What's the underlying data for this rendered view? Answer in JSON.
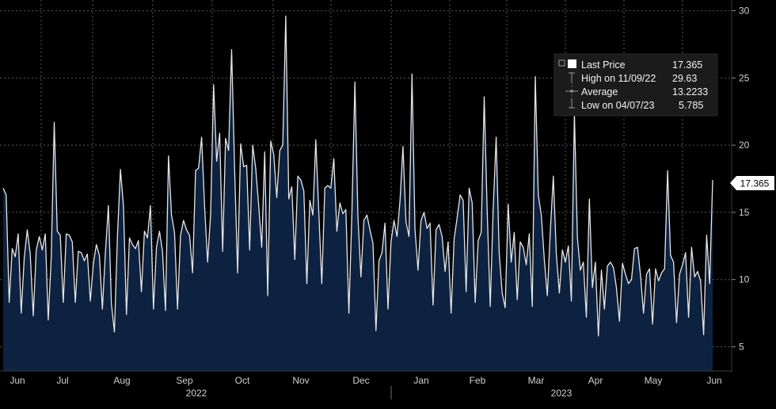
{
  "chart_data": {
    "type": "area",
    "last_price_label": "17.365",
    "x_month_labels": [
      "Jun",
      "Jul",
      "Aug",
      "Sep",
      "Oct",
      "Nov",
      "Dec",
      "Jan",
      "Feb",
      "Mar",
      "Apr",
      "May",
      "Jun"
    ],
    "year_labels": [
      "2022",
      "2023"
    ],
    "y_ticks": [
      5,
      10,
      15,
      20,
      25,
      30
    ],
    "ylim": [
      3.2,
      30.8
    ],
    "legend": [
      {
        "name": "Last Price",
        "value": "17.365"
      },
      {
        "name": "High on 11/09/22",
        "value": "29.63"
      },
      {
        "name": "Average",
        "value": "13.2233"
      },
      {
        "name": "Low on 04/07/23",
        "value": "5.785"
      }
    ],
    "series": [
      {
        "name": "Last Price",
        "values": [
          16.8,
          16.3,
          8.3,
          12.3,
          11.7,
          13.4,
          7.5,
          11.6,
          13.7,
          11.9,
          7.3,
          12.2,
          13.2,
          12.2,
          13.4,
          7.0,
          11.6,
          21.7,
          13.6,
          13.3,
          8.3,
          13.4,
          13.3,
          12.8,
          8.3,
          12.1,
          12.0,
          11.4,
          11.9,
          8.4,
          11.2,
          12.6,
          11.8,
          7.8,
          12.0,
          15.5,
          8.2,
          6.1,
          13.2,
          18.2,
          15.5,
          7.4,
          13.1,
          12.6,
          12.3,
          12.9,
          9.1,
          13.6,
          13.1,
          15.5,
          7.8,
          12.4,
          13.6,
          12.1,
          7.7,
          19.2,
          14.8,
          13.5,
          7.8,
          13.3,
          14.4,
          13.7,
          13.3,
          10.5,
          18.1,
          18.3,
          20.6,
          15.4,
          11.3,
          14.9,
          24.5,
          18.8,
          20.9,
          12.1,
          20.5,
          19.6,
          27.1,
          18.2,
          10.5,
          20.1,
          18.4,
          18.5,
          12.2,
          20.0,
          18.3,
          15.5,
          12.4,
          19.5,
          8.8,
          20.3,
          19.3,
          16.1,
          19.6,
          20.0,
          29.6,
          16.0,
          16.9,
          11.5,
          17.7,
          17.4,
          16.6,
          9.7,
          15.9,
          14.8,
          20.4,
          15.0,
          9.7,
          16.8,
          17.0,
          16.8,
          19.0,
          13.6,
          15.7,
          14.9,
          15.2,
          7.5,
          14.9,
          24.7,
          14.7,
          10.2,
          14.4,
          14.8,
          13.7,
          12.7,
          6.2,
          11.4,
          12.0,
          14.2,
          7.8,
          12.8,
          14.4,
          13.2,
          15.9,
          19.9,
          14.3,
          13.2,
          25.3,
          13.7,
          10.7,
          14.4,
          15.0,
          13.8,
          14.2,
          8.1,
          13.7,
          14.1,
          13.2,
          10.6,
          12.8,
          7.5,
          13.0,
          14.6,
          16.3,
          15.9,
          9.1,
          16.8,
          15.7,
          8.3,
          12.9,
          13.5,
          23.6,
          15.0,
          8.0,
          15.2,
          20.6,
          12.0,
          9.0,
          7.9,
          15.6,
          11.3,
          13.5,
          8.5,
          12.8,
          12.4,
          11.1,
          13.4,
          8.0,
          25.1,
          16.3,
          14.8,
          11.5,
          8.8,
          13.6,
          17.7,
          11.9,
          9.0,
          12.2,
          11.3,
          12.5,
          8.4,
          22.4,
          13.1,
          10.7,
          11.3,
          7.2,
          16.0,
          9.4,
          11.3,
          5.8,
          10.7,
          7.8,
          11.0,
          11.3,
          10.9,
          9.4,
          6.9,
          11.2,
          10.4,
          9.7,
          10.0,
          12.3,
          12.4,
          10.3,
          7.5,
          10.4,
          10.8,
          6.7,
          10.8,
          9.9,
          10.5,
          10.8,
          18.1,
          11.8,
          11.3,
          6.8,
          10.4,
          11.1,
          12.0,
          7.2,
          12.4,
          10.2,
          10.6,
          9.9,
          5.9,
          13.3,
          9.7,
          17.4
        ]
      }
    ]
  }
}
